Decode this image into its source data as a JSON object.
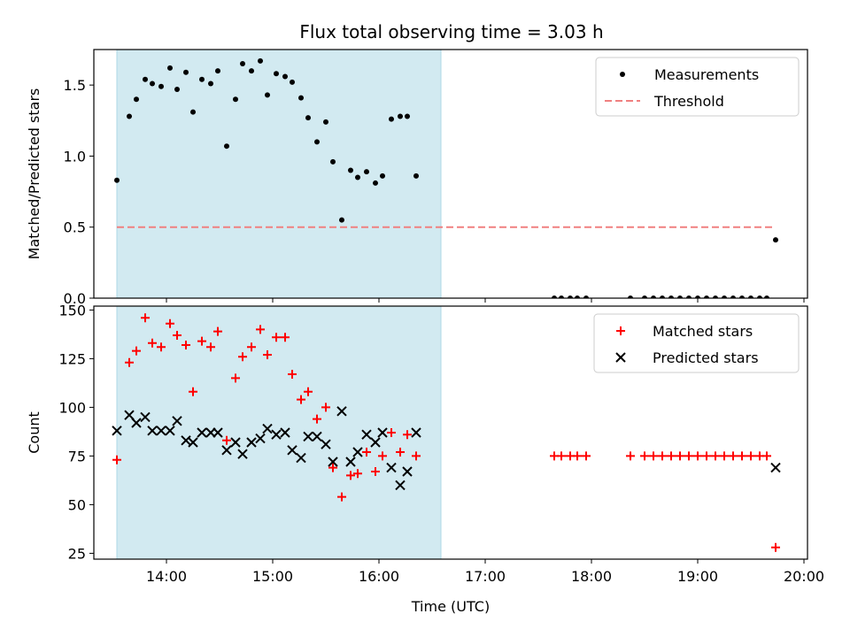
{
  "title": "Flux total observing time = 3.03 h",
  "chart_data": [
    {
      "type": "scatter",
      "ylabel": "Matched/Predicted stars",
      "xlim": [
        "13:19",
        "20:02"
      ],
      "ylim": [
        0,
        1.75
      ],
      "yticks": [
        0.0,
        0.5,
        1.0,
        1.5
      ],
      "ytick_labels": [
        "0.0",
        "0.5",
        "1.0",
        "1.5"
      ],
      "shaded_interval": [
        "13:32",
        "16:35"
      ],
      "shade_color": "#add8e6",
      "legend_position": "top-right",
      "series": [
        {
          "name": "Measurements",
          "marker": "dot",
          "color": "#000000",
          "points": [
            [
              "13:32",
              0.83
            ],
            [
              "13:39",
              1.28
            ],
            [
              "13:43",
              1.4
            ],
            [
              "13:48",
              1.54
            ],
            [
              "13:52",
              1.51
            ],
            [
              "13:57",
              1.49
            ],
            [
              "14:02",
              1.62
            ],
            [
              "14:06",
              1.47
            ],
            [
              "14:11",
              1.59
            ],
            [
              "14:15",
              1.31
            ],
            [
              "14:20",
              1.54
            ],
            [
              "14:25",
              1.51
            ],
            [
              "14:29",
              1.6
            ],
            [
              "14:34",
              1.07
            ],
            [
              "14:39",
              1.4
            ],
            [
              "14:43",
              1.65
            ],
            [
              "14:48",
              1.6
            ],
            [
              "14:53",
              1.67
            ],
            [
              "14:57",
              1.43
            ],
            [
              "15:02",
              1.58
            ],
            [
              "15:07",
              1.56
            ],
            [
              "15:11",
              1.52
            ],
            [
              "15:16",
              1.41
            ],
            [
              "15:20",
              1.27
            ],
            [
              "15:25",
              1.1
            ],
            [
              "15:30",
              1.24
            ],
            [
              "15:34",
              0.96
            ],
            [
              "15:39",
              0.55
            ],
            [
              "15:44",
              0.9
            ],
            [
              "15:48",
              0.85
            ],
            [
              "15:53",
              0.89
            ],
            [
              "15:58",
              0.81
            ],
            [
              "16:02",
              0.86
            ],
            [
              "16:07",
              1.26
            ],
            [
              "16:12",
              1.28
            ],
            [
              "16:16",
              1.28
            ],
            [
              "16:21",
              0.86
            ],
            [
              "17:39",
              0.0
            ],
            [
              "17:43",
              0.0
            ],
            [
              "17:48",
              0.0
            ],
            [
              "17:52",
              0.0
            ],
            [
              "17:57",
              0.0
            ],
            [
              "18:22",
              0.0
            ],
            [
              "18:30",
              0.0
            ],
            [
              "18:35",
              0.0
            ],
            [
              "18:40",
              0.0
            ],
            [
              "18:45",
              0.0
            ],
            [
              "18:50",
              0.0
            ],
            [
              "18:55",
              0.0
            ],
            [
              "19:00",
              0.0
            ],
            [
              "19:05",
              0.0
            ],
            [
              "19:10",
              0.0
            ],
            [
              "19:15",
              0.0
            ],
            [
              "19:20",
              0.0
            ],
            [
              "19:25",
              0.0
            ],
            [
              "19:30",
              0.0
            ],
            [
              "19:35",
              0.0
            ],
            [
              "19:39",
              0.0
            ],
            [
              "19:44",
              0.41
            ]
          ]
        },
        {
          "name": "Threshold",
          "type": "line",
          "style": "dashed",
          "color": "#f08080",
          "points": [
            [
              "13:32",
              0.5
            ],
            [
              "19:44",
              0.5
            ]
          ]
        }
      ]
    },
    {
      "type": "scatter",
      "ylabel": "Count",
      "xlabel": "Time (UTC)",
      "xlim": [
        "13:19",
        "20:02"
      ],
      "ylim": [
        22,
        152
      ],
      "yticks": [
        25,
        50,
        75,
        100,
        125,
        150
      ],
      "ytick_labels": [
        "25",
        "50",
        "75",
        "100",
        "125",
        "150"
      ],
      "xticks": [
        "14:00",
        "15:00",
        "16:00",
        "17:00",
        "18:00",
        "19:00",
        "20:00"
      ],
      "xtick_labels": [
        "14:00",
        "15:00",
        "16:00",
        "17:00",
        "18:00",
        "19:00",
        "20:00"
      ],
      "shaded_interval": [
        "13:32",
        "16:35"
      ],
      "shade_color": "#add8e6",
      "legend_position": "top-right",
      "series": [
        {
          "name": "Matched stars",
          "marker": "plus",
          "color": "#ff0000",
          "points": [
            [
              "13:32",
              73
            ],
            [
              "13:39",
              123
            ],
            [
              "13:43",
              129
            ],
            [
              "13:48",
              146
            ],
            [
              "13:52",
              133
            ],
            [
              "13:57",
              131
            ],
            [
              "14:02",
              143
            ],
            [
              "14:06",
              137
            ],
            [
              "14:11",
              132
            ],
            [
              "14:15",
              108
            ],
            [
              "14:20",
              134
            ],
            [
              "14:25",
              131
            ],
            [
              "14:29",
              139
            ],
            [
              "14:34",
              83
            ],
            [
              "14:39",
              115
            ],
            [
              "14:43",
              126
            ],
            [
              "14:48",
              131
            ],
            [
              "14:53",
              140
            ],
            [
              "14:57",
              127
            ],
            [
              "15:02",
              136
            ],
            [
              "15:07",
              136
            ],
            [
              "15:11",
              117
            ],
            [
              "15:16",
              104
            ],
            [
              "15:20",
              108
            ],
            [
              "15:25",
              94
            ],
            [
              "15:30",
              100
            ],
            [
              "15:34",
              69
            ],
            [
              "15:39",
              54
            ],
            [
              "15:44",
              65
            ],
            [
              "15:48",
              66
            ],
            [
              "15:53",
              77
            ],
            [
              "15:58",
              67
            ],
            [
              "16:02",
              75
            ],
            [
              "16:07",
              87
            ],
            [
              "16:12",
              77
            ],
            [
              "16:16",
              86
            ],
            [
              "16:21",
              75
            ],
            [
              "17:39",
              75
            ],
            [
              "17:43",
              75
            ],
            [
              "17:48",
              75
            ],
            [
              "17:52",
              75
            ],
            [
              "17:57",
              75
            ],
            [
              "18:22",
              75
            ],
            [
              "18:30",
              75
            ],
            [
              "18:35",
              75
            ],
            [
              "18:40",
              75
            ],
            [
              "18:45",
              75
            ],
            [
              "18:50",
              75
            ],
            [
              "18:55",
              75
            ],
            [
              "19:00",
              75
            ],
            [
              "19:05",
              75
            ],
            [
              "19:10",
              75
            ],
            [
              "19:15",
              75
            ],
            [
              "19:20",
              75
            ],
            [
              "19:25",
              75
            ],
            [
              "19:30",
              75
            ],
            [
              "19:35",
              75
            ],
            [
              "19:39",
              75
            ],
            [
              "19:44",
              28
            ]
          ]
        },
        {
          "name": "Predicted stars",
          "marker": "x",
          "color": "#000000",
          "points": [
            [
              "13:32",
              88
            ],
            [
              "13:39",
              96
            ],
            [
              "13:43",
              92
            ],
            [
              "13:48",
              95
            ],
            [
              "13:52",
              88
            ],
            [
              "13:57",
              88
            ],
            [
              "14:02",
              88
            ],
            [
              "14:06",
              93
            ],
            [
              "14:11",
              83
            ],
            [
              "14:15",
              82
            ],
            [
              "14:20",
              87
            ],
            [
              "14:25",
              87
            ],
            [
              "14:29",
              87
            ],
            [
              "14:34",
              78
            ],
            [
              "14:39",
              82
            ],
            [
              "14:43",
              76
            ],
            [
              "14:48",
              82
            ],
            [
              "14:53",
              84
            ],
            [
              "14:57",
              89
            ],
            [
              "15:02",
              86
            ],
            [
              "15:07",
              87
            ],
            [
              "15:11",
              78
            ],
            [
              "15:16",
              74
            ],
            [
              "15:20",
              85
            ],
            [
              "15:25",
              85
            ],
            [
              "15:30",
              81
            ],
            [
              "15:34",
              72
            ],
            [
              "15:39",
              98
            ],
            [
              "15:44",
              72
            ],
            [
              "15:48",
              77
            ],
            [
              "15:53",
              86
            ],
            [
              "15:58",
              82
            ],
            [
              "16:02",
              87
            ],
            [
              "16:07",
              69
            ],
            [
              "16:12",
              60
            ],
            [
              "16:16",
              67
            ],
            [
              "16:21",
              87
            ],
            [
              "19:44",
              69
            ]
          ]
        }
      ]
    }
  ]
}
